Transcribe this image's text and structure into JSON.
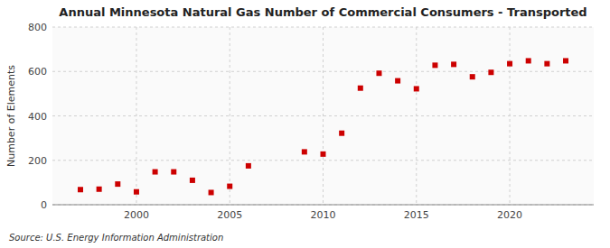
{
  "chart_data": {
    "type": "scatter",
    "title": "Annual Minnesota Natural Gas Number of Commercial Consumers - Transported",
    "y_label": "Number of Elements",
    "annotations": [
      "Source: U.S. Energy Information Administration"
    ],
    "x": [
      1997,
      1998,
      1999,
      2000,
      2001,
      2002,
      2003,
      2004,
      2005,
      2006,
      2009,
      2010,
      2011,
      2012,
      2013,
      2014,
      2015,
      2016,
      2017,
      2018,
      2019,
      2020,
      2021,
      2022,
      2023
    ],
    "values": [
      68,
      70,
      93,
      58,
      148,
      148,
      110,
      55,
      83,
      175,
      238,
      228,
      322,
      525,
      592,
      558,
      522,
      628,
      632,
      576,
      596,
      635,
      648,
      635,
      648
    ],
    "color": "#cc0000",
    "marker": "square",
    "xlim": [
      1995.5,
      2024.5
    ],
    "ylim": [
      0,
      800
    ],
    "xticks": [
      2000,
      2005,
      2010,
      2015,
      2020
    ],
    "yticks": [
      0,
      200,
      400,
      600,
      800
    ],
    "grid": true
  }
}
